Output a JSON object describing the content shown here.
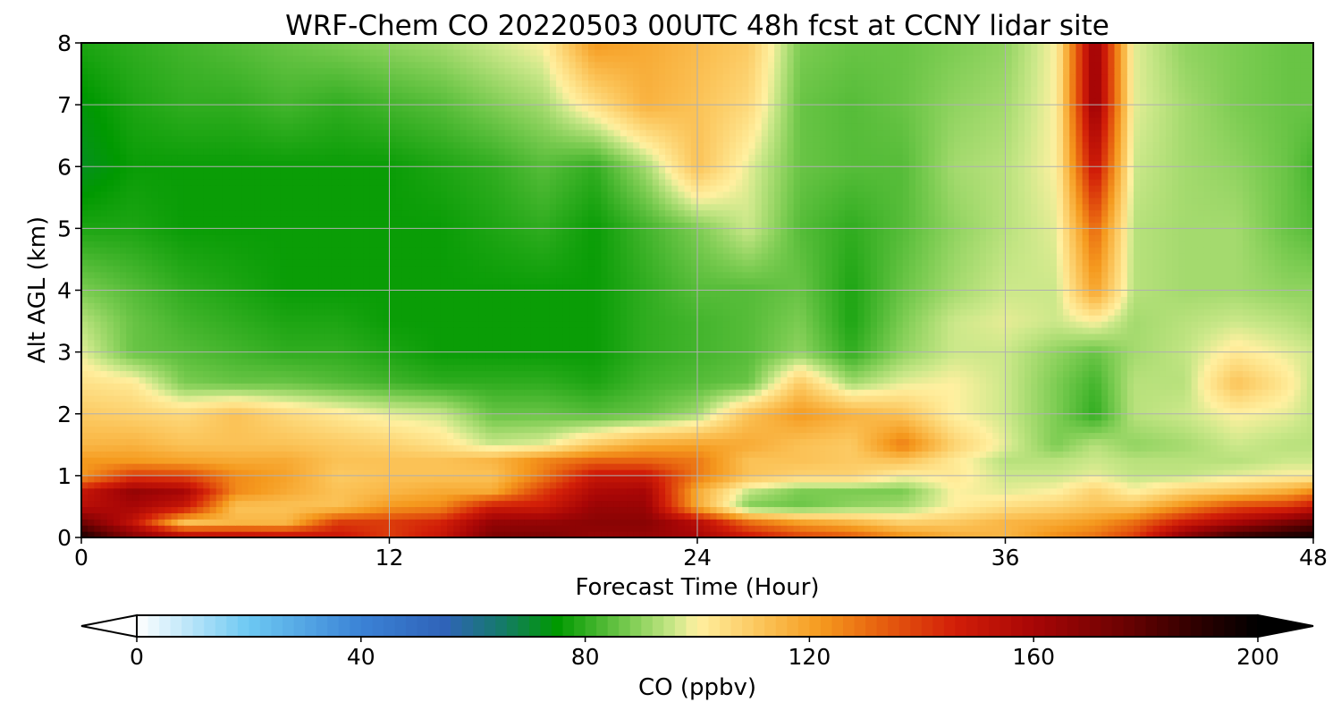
{
  "chart_data": {
    "type": "heatmap",
    "title": "WRF-Chem CO  20220503 00UTC 48h fcst at CCNY lidar site",
    "xlabel": "Forecast Time (Hour)",
    "ylabel": "Alt AGL (km)",
    "xlim": [
      0,
      48
    ],
    "ylim": [
      0,
      8
    ],
    "x_ticks": [
      0,
      12,
      24,
      36,
      48
    ],
    "x_tick_labels": [
      "0",
      "12",
      "24",
      "36",
      "48"
    ],
    "y_ticks": [
      0,
      1,
      2,
      3,
      4,
      5,
      6,
      7,
      8
    ],
    "y_tick_labels": [
      "0",
      "1",
      "2",
      "3",
      "4",
      "5",
      "6",
      "7",
      "8"
    ],
    "grid": true,
    "colorbar": {
      "label": "CO  (ppbv)",
      "orientation": "horizontal",
      "placement": "bottom",
      "vmin": 0,
      "vmax": 200,
      "extend": "both",
      "ticks": [
        0,
        40,
        80,
        120,
        160,
        200
      ],
      "tick_labels": [
        "0",
        "40",
        "80",
        "120",
        "160",
        "200"
      ],
      "colormap_stops": [
        {
          "value": 0,
          "color": "#ffffff"
        },
        {
          "value": 20,
          "color": "#6cc8f2"
        },
        {
          "value": 40,
          "color": "#3b82d6"
        },
        {
          "value": 55,
          "color": "#2f63b8"
        },
        {
          "value": 65,
          "color": "#157a6a"
        },
        {
          "value": 75,
          "color": "#009900"
        },
        {
          "value": 88,
          "color": "#7ccc52"
        },
        {
          "value": 96,
          "color": "#cce88a"
        },
        {
          "value": 100,
          "color": "#fff0a0"
        },
        {
          "value": 112,
          "color": "#fbc256"
        },
        {
          "value": 122,
          "color": "#f59a1e"
        },
        {
          "value": 132,
          "color": "#e86410"
        },
        {
          "value": 146,
          "color": "#d21e08"
        },
        {
          "value": 160,
          "color": "#a80606"
        },
        {
          "value": 176,
          "color": "#6c0202"
        },
        {
          "value": 190,
          "color": "#2a0000"
        },
        {
          "value": 200,
          "color": "#000000"
        }
      ]
    },
    "field": {
      "x_hours": [
        0,
        2,
        4,
        6,
        8,
        10,
        12,
        14,
        16,
        18,
        20,
        22,
        24,
        26,
        28,
        30,
        32,
        34,
        36,
        38,
        39.5,
        41,
        43,
        45,
        47,
        48
      ],
      "y_km": [
        0,
        0.25,
        0.5,
        0.75,
        1,
        1.25,
        1.5,
        2,
        2.5,
        3,
        3.5,
        4,
        5,
        6,
        7,
        8
      ],
      "values_ppbv": [
        [
          195,
          170,
          160,
          158,
          155,
          150,
          140,
          150,
          172,
          172,
          165,
          165,
          160,
          150,
          140,
          135,
          125,
          118,
          115,
          125,
          130,
          140,
          170,
          190,
          195,
          198
        ],
        [
          175,
          152,
          112,
          115,
          115,
          140,
          140,
          145,
          165,
          165,
          168,
          168,
          155,
          130,
          120,
          115,
          108,
          110,
          115,
          118,
          122,
          130,
          148,
          160,
          172,
          178
        ],
        [
          155,
          160,
          150,
          112,
          112,
          112,
          122,
          125,
          148,
          148,
          164,
          164,
          118,
          88,
          86,
          90,
          92,
          100,
          105,
          108,
          112,
          112,
          125,
          138,
          142,
          150
        ],
        [
          150,
          165,
          160,
          125,
          118,
          112,
          115,
          118,
          118,
          140,
          158,
          160,
          118,
          95,
          88,
          88,
          88,
          100,
          98,
          100,
          108,
          100,
          108,
          112,
          118,
          125
        ],
        [
          122,
          140,
          138,
          125,
          120,
          110,
          112,
          112,
          112,
          128,
          150,
          150,
          128,
          112,
          108,
          108,
          100,
          102,
          96,
          96,
          98,
          95,
          95,
          98,
          100,
          100
        ],
        [
          122,
          122,
          120,
          118,
          118,
          112,
          112,
          112,
          115,
          125,
          132,
          132,
          128,
          112,
          112,
          110,
          112,
          102,
          94,
          94,
          96,
          94,
          94,
          94,
          96,
          96
        ],
        [
          115,
          116,
          112,
          112,
          112,
          110,
          108,
          104,
          96,
          98,
          110,
          118,
          120,
          118,
          112,
          110,
          128,
          108,
          98,
          88,
          94,
          90,
          92,
          96,
          94,
          94
        ],
        [
          110,
          108,
          106,
          112,
          106,
          102,
          98,
          96,
          86,
          86,
          84,
          86,
          92,
          112,
          122,
          116,
          112,
          100,
          96,
          88,
          80,
          94,
          96,
          100,
          98,
          95
        ],
        [
          104,
          102,
          88,
          86,
          86,
          84,
          82,
          80,
          80,
          80,
          78,
          82,
          84,
          86,
          110,
          92,
          98,
          100,
          96,
          88,
          82,
          94,
          94,
          112,
          102,
          95
        ],
        [
          98,
          86,
          84,
          82,
          80,
          80,
          78,
          76,
          76,
          76,
          76,
          80,
          82,
          84,
          90,
          80,
          90,
          96,
          96,
          90,
          86,
          92,
          95,
          102,
          98,
          96
        ],
        [
          94,
          86,
          82,
          80,
          78,
          78,
          76,
          76,
          76,
          76,
          76,
          80,
          82,
          84,
          88,
          78,
          88,
          96,
          98,
          96,
          100,
          92,
          94,
          96,
          94,
          92
        ],
        [
          88,
          84,
          80,
          78,
          76,
          76,
          76,
          76,
          76,
          76,
          76,
          80,
          84,
          84,
          86,
          78,
          86,
          92,
          96,
          96,
          120,
          94,
          92,
          92,
          90,
          90
        ],
        [
          78,
          78,
          76,
          76,
          76,
          76,
          76,
          76,
          78,
          80,
          76,
          82,
          88,
          96,
          84,
          80,
          84,
          90,
          94,
          98,
          132,
          94,
          92,
          92,
          86,
          84
        ],
        [
          72,
          76,
          76,
          76,
          76,
          76,
          76,
          78,
          80,
          84,
          80,
          92,
          112,
          98,
          86,
          84,
          84,
          92,
          94,
          100,
          152,
          96,
          92,
          90,
          86,
          82
        ],
        [
          74,
          78,
          80,
          80,
          82,
          80,
          82,
          84,
          88,
          92,
          104,
          116,
          112,
          106,
          86,
          84,
          86,
          90,
          92,
          100,
          166,
          98,
          92,
          88,
          86,
          86
        ],
        [
          78,
          80,
          82,
          84,
          86,
          88,
          90,
          92,
          96,
          100,
          122,
          118,
          114,
          110,
          88,
          86,
          86,
          88,
          90,
          100,
          165,
          98,
          90,
          88,
          86,
          86
        ]
      ]
    }
  }
}
